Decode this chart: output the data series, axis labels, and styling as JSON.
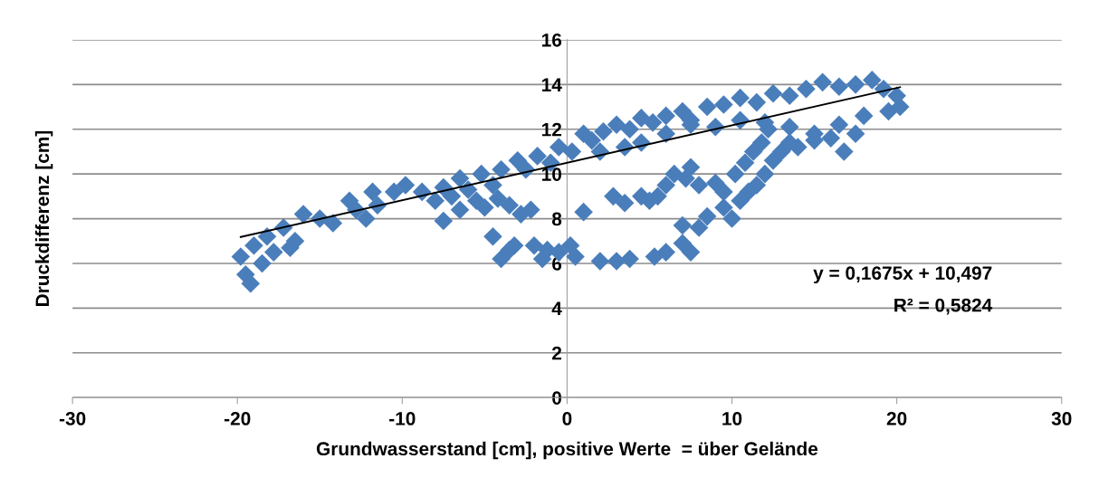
{
  "chart_data": {
    "type": "scatter",
    "xlabel": "Grundwasserstand [cm], positive Werte  = über Gelände",
    "ylabel": "Druckdifferenz [cm]",
    "xlim": [
      -30,
      30
    ],
    "xticks": [
      -30,
      -20,
      -10,
      0,
      10,
      20,
      30
    ],
    "ylim": [
      0,
      16
    ],
    "yticks": [
      0,
      2,
      4,
      6,
      8,
      10,
      12,
      14,
      16
    ],
    "grid": "y",
    "marker": "diamond",
    "annotations": [
      "y = 0,1675x + 10,497",
      "R² = 0,5824"
    ],
    "series": [
      {
        "color": "#4a7ebb",
        "x": [
          -19.8,
          -19.5,
          -19.2,
          -19,
          -18.5,
          -18.2,
          -17.8,
          -17.2,
          -16.8,
          -16.5,
          -16,
          -15,
          -14.2,
          -13.2,
          -12.8,
          -12.2,
          -11.8,
          -11.5,
          -10.5,
          -9.8,
          -8.8,
          -8,
          -7.5,
          -6.5,
          -6,
          -5.2,
          -4.5,
          -4,
          -3,
          -2.5,
          -1.8,
          -1,
          -0.5,
          0.3,
          1,
          1.5,
          2.2,
          3,
          3.8,
          4.5,
          5.2,
          6,
          7,
          7.5,
          8.5,
          9.5,
          10.5,
          11.5,
          12.5,
          13.5,
          14.5,
          15.5,
          16.5,
          17.5,
          18.5,
          19.2,
          20,
          20.2,
          19.5,
          18,
          16.5,
          15,
          13.5,
          12,
          10.5,
          9,
          7.5,
          6,
          4.5,
          3.5,
          2,
          -7,
          -6.5,
          -5.5,
          -5,
          -4.2,
          -3.5,
          -2.8,
          -2.2,
          -7.5,
          -4.5,
          -3.5,
          -4,
          -3.2,
          -2,
          -1.2,
          -0.5,
          0.2,
          0.5,
          -1.5,
          1,
          2,
          3,
          3.8,
          2.8,
          3.5,
          5.3,
          6,
          7,
          7.5,
          7,
          8,
          8.5,
          9.5,
          10,
          10.5,
          11,
          11.5,
          12,
          12.5,
          13,
          13.5,
          14,
          15,
          16,
          16.8,
          17.5,
          5.5,
          6,
          6.5,
          7.2,
          7.5,
          8,
          9,
          9.5,
          10.2,
          10.8,
          11.3,
          11.8,
          12.2,
          5,
          4.5
        ],
        "values": [
          6.3,
          5.5,
          5.1,
          6.8,
          6.0,
          7.2,
          6.5,
          7.6,
          6.7,
          7.0,
          8.2,
          8.0,
          7.8,
          8.8,
          8.4,
          8.0,
          9.2,
          8.6,
          9.2,
          9.5,
          9.2,
          8.8,
          9.4,
          9.8,
          9.3,
          10.0,
          9.5,
          10.2,
          10.6,
          10.2,
          10.8,
          10.5,
          11.2,
          11.0,
          11.8,
          11.5,
          11.9,
          12.2,
          12.0,
          12.5,
          12.3,
          12.6,
          12.8,
          12.4,
          13.0,
          13.1,
          13.4,
          13.2,
          13.6,
          13.5,
          13.8,
          14.1,
          13.9,
          14.0,
          14.2,
          13.8,
          13.5,
          13.0,
          12.8,
          12.6,
          12.2,
          11.8,
          12.1,
          12.3,
          12.4,
          12.1,
          12.2,
          11.8,
          11.4,
          11.2,
          11.0,
          9.0,
          8.4,
          8.8,
          8.5,
          8.9,
          8.6,
          8.2,
          8.4,
          7.9,
          7.2,
          6.6,
          6.2,
          6.8,
          6.8,
          6.6,
          6.5,
          6.8,
          6.3,
          6.2,
          8.3,
          6.1,
          6.1,
          6.2,
          9.0,
          8.7,
          6.3,
          6.5,
          6.9,
          6.5,
          7.7,
          7.6,
          8.1,
          8.5,
          8.0,
          8.8,
          9.2,
          9.5,
          10.0,
          10.6,
          11.0,
          11.4,
          11.2,
          11.5,
          11.6,
          11.0,
          11.8,
          9.0,
          9.5,
          10.0,
          9.8,
          10.3,
          9.5,
          9.6,
          9.2,
          10.0,
          10.5,
          11.0,
          11.4,
          12.0,
          8.8,
          9.0
        ]
      },
      {
        "type": "line",
        "color": "#000000",
        "marker": "none",
        "x": [
          -19.8,
          20.2
        ],
        "values": [
          7.18,
          13.88
        ]
      }
    ]
  }
}
